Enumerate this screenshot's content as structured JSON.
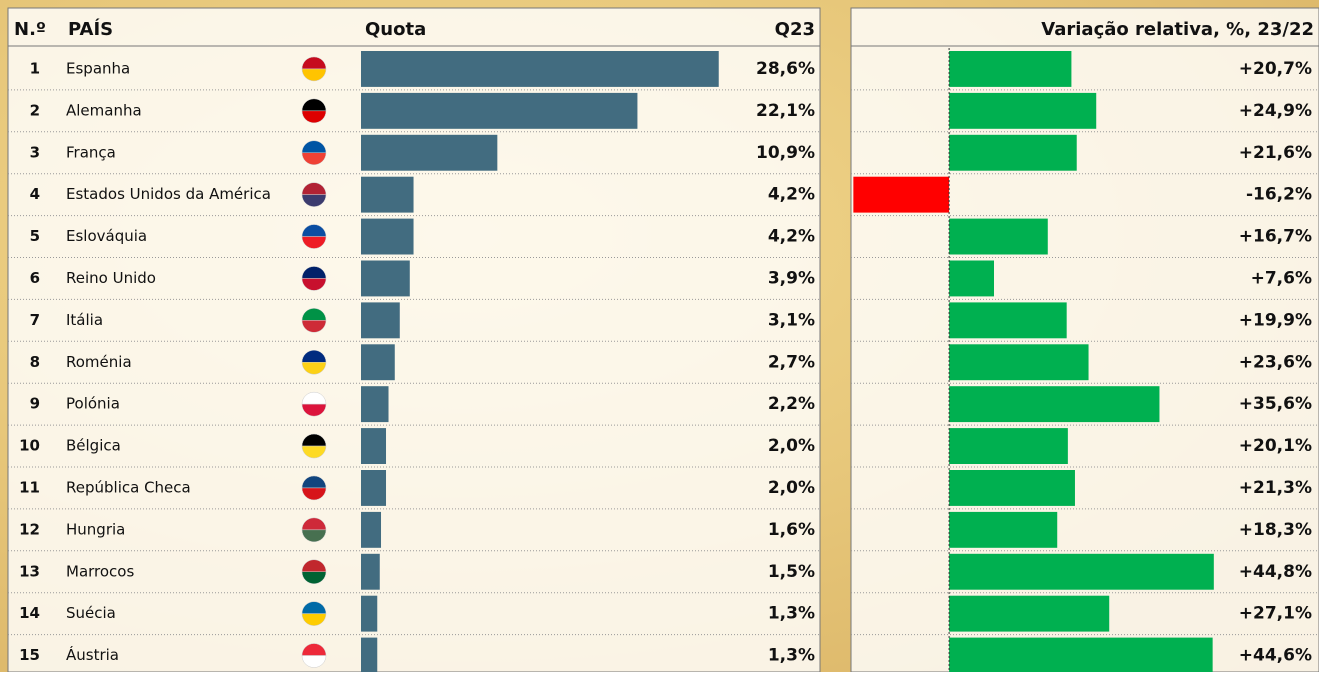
{
  "chart_data": {
    "type": "bar",
    "headers": {
      "rank": "N.º",
      "country": "PAÍS",
      "share": "Quota",
      "period": "Q23",
      "change": "Variação relativa, %, 23/22"
    },
    "ranks": [
      1,
      2,
      3,
      4,
      5,
      6,
      7,
      8,
      9,
      10,
      11,
      12,
      13,
      14,
      15
    ],
    "categories": [
      "Espanha",
      "Alemanha",
      "França",
      "Estados Unidos da América",
      "Eslováquia",
      "Reino Unido",
      "Itália",
      "Roménia",
      "Polónia",
      "Bélgica",
      "República Checa",
      "Hungria",
      "Marrocos",
      "Suécia",
      "Áustria"
    ],
    "series": [
      {
        "name": "Quota",
        "color": "#426c80",
        "values": [
          28.6,
          22.1,
          10.9,
          4.2,
          4.2,
          3.9,
          3.1,
          2.7,
          2.2,
          2.0,
          2.0,
          1.6,
          1.5,
          1.3,
          1.3
        ],
        "value_labels": [
          "28,6%",
          "22,1%",
          "10,9%",
          "4,2%",
          "4,2%",
          "3,9%",
          "3,1%",
          "2,7%",
          "2,2%",
          "2,0%",
          "2,0%",
          "1,6%",
          "1,5%",
          "1,3%",
          "1,3%"
        ],
        "xlim": [
          0,
          30.3
        ]
      },
      {
        "name": "Variação relativa, %, 23/22",
        "color": "#00b050",
        "negative_color": "#ff0000",
        "values": [
          20.7,
          24.9,
          21.6,
          -16.2,
          16.7,
          7.6,
          19.9,
          23.6,
          35.6,
          20.1,
          21.3,
          18.3,
          44.8,
          27.1,
          44.6
        ],
        "value_labels": [
          "+20,7%",
          "+24,9%",
          "+21,6%",
          "-16,2%",
          "+16,7%",
          "+7,6%",
          "+19,9%",
          "+23,6%",
          "+35,6%",
          "+20,1%",
          "+21,3%",
          "+18,3%",
          "+44,8%",
          "+27,1%",
          "+44,6%"
        ],
        "xlim": [
          -16.6,
          62.6
        ]
      }
    ]
  }
}
